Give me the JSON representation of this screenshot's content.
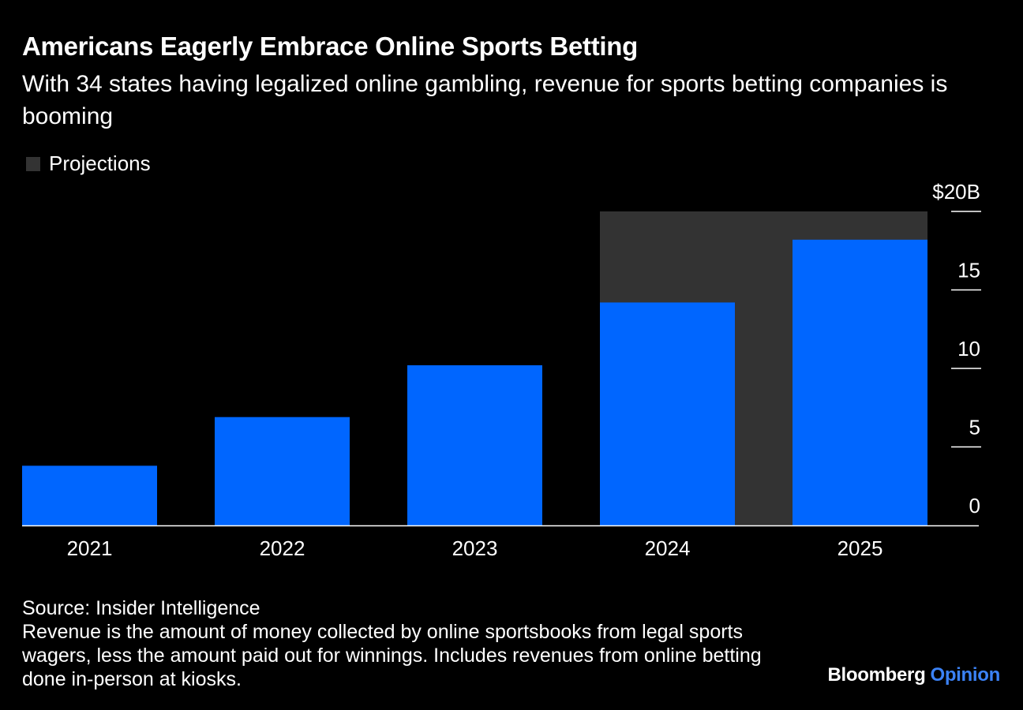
{
  "title": "Americans Eagerly Embrace Online Sports Betting",
  "subtitle": "With 34 states having legalized online gambling, revenue for sports betting companies is booming",
  "legend": {
    "projections_label": "Projections"
  },
  "colors": {
    "bar": "#0066ff",
    "projection_shade": "#333333",
    "background": "#000000",
    "text": "#ffffff",
    "brand_accent": "#3b82f6"
  },
  "chart_data": {
    "type": "bar",
    "categories": [
      "2021",
      "2022",
      "2023",
      "2024",
      "2025"
    ],
    "values": [
      3.8,
      6.9,
      10.2,
      14.2,
      18.2
    ],
    "projected_categories": [
      "2024",
      "2025"
    ],
    "ylim": [
      0,
      20
    ],
    "yticks": [
      0,
      5,
      10,
      15,
      20
    ],
    "ytick_labels": [
      "0",
      "5",
      "10",
      "15",
      "$20B"
    ],
    "ylabel": "",
    "xlabel": "",
    "grid": false,
    "y_axis_side": "right"
  },
  "footer": {
    "source": "Source: Insider Intelligence",
    "note": "Revenue is the amount of money collected by online sportsbooks from legal sports wagers, less the amount paid out for winnings. Includes revenues from online betting done in-person at kiosks."
  },
  "branding": {
    "name": "Bloomberg",
    "section": "Opinion"
  }
}
